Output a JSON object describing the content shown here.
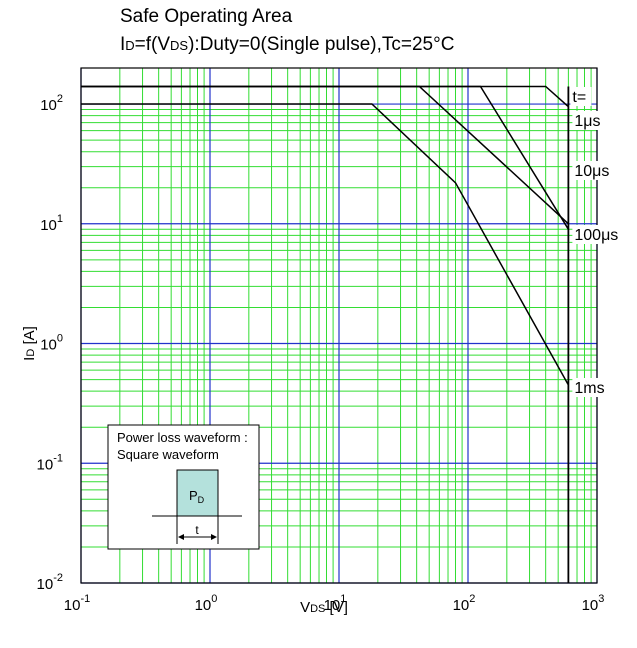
{
  "chart_data": {
    "type": "line",
    "title": "Safe Operating Area",
    "subtitle_parts": {
      "id_main": "I",
      "id_sub": "D",
      "middle": "=f(V",
      "vds_sub": "DS",
      "rest": "):Duty=0(Single pulse),Tc=25°C"
    },
    "xlabel_parts": {
      "main": "V",
      "sub": "DS",
      "unit": " [V]"
    },
    "ylabel_parts": {
      "main": "I",
      "sub": "D",
      "unit": " [A]"
    },
    "x_scale": "log",
    "y_scale": "log",
    "xlim": [
      0.1,
      1000
    ],
    "ylim": [
      0.01,
      200
    ],
    "x_ticks": [
      {
        "value": 0.1,
        "base": "10",
        "exp": "-1"
      },
      {
        "value": 1,
        "base": "10",
        "exp": "0"
      },
      {
        "value": 10,
        "base": "10",
        "exp": "1"
      },
      {
        "value": 100,
        "base": "10",
        "exp": "2"
      },
      {
        "value": 1000,
        "base": "10",
        "exp": "3"
      }
    ],
    "y_ticks": [
      {
        "value": 0.01,
        "base": "10",
        "exp": "-2"
      },
      {
        "value": 0.1,
        "base": "10",
        "exp": "-1"
      },
      {
        "value": 1,
        "base": "10",
        "exp": "0"
      },
      {
        "value": 10,
        "base": "10",
        "exp": "1"
      },
      {
        "value": 100,
        "base": "10",
        "exp": "2"
      }
    ],
    "grid": true,
    "colors": {
      "major_grid": "#2233cc",
      "minor_grid": "#33dd33",
      "curve": "#000000"
    },
    "series_label_header": "t=",
    "series": [
      {
        "name": "1μs",
        "points": [
          [
            0.1,
            140
          ],
          [
            400,
            140
          ],
          [
            600,
            95
          ]
        ]
      },
      {
        "name": "10μs",
        "points": [
          [
            0.1,
            140
          ],
          [
            125,
            140
          ],
          [
            600,
            9
          ]
        ]
      },
      {
        "name": "100μs",
        "points": [
          [
            0.1,
            140
          ],
          [
            42,
            140
          ],
          [
            600,
            10
          ]
        ]
      },
      {
        "name": "1ms",
        "points": [
          [
            0.1,
            100
          ],
          [
            18,
            100
          ],
          [
            80,
            22
          ],
          [
            600,
            0.45
          ]
        ]
      }
    ],
    "vertical_limit": {
      "x": 600,
      "y_range": [
        0.01,
        140
      ]
    }
  },
  "inset": {
    "line1": "Power loss waveform :",
    "line2": "Square waveform",
    "pulse_main": "P",
    "pulse_sub": "D",
    "width_label": "t"
  }
}
